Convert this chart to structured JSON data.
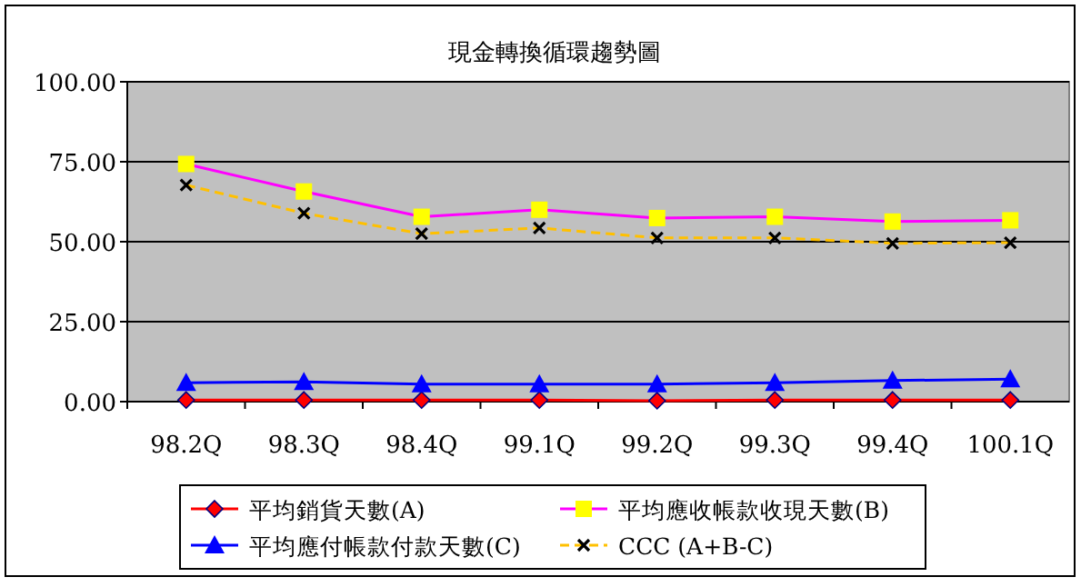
{
  "chart_data": {
    "type": "line",
    "title": "現金轉換循環趨勢圖",
    "categories": [
      "98.2Q",
      "98.3Q",
      "98.4Q",
      "99.1Q",
      "99.2Q",
      "99.3Q",
      "99.4Q",
      "100.1Q"
    ],
    "series": [
      {
        "name": "平均銷貨天數(A)",
        "color": "#ff0000",
        "marker": "diamond",
        "line_style": "solid",
        "values": [
          0.5,
          0.5,
          0.5,
          0.5,
          0.3,
          0.5,
          0.5,
          0.5
        ]
      },
      {
        "name": "平均應收帳款收現天數(B)",
        "color": "#ff00ff",
        "marker": "square",
        "line_style": "solid",
        "values": [
          74.3,
          65.7,
          57.8,
          60.0,
          57.4,
          57.8,
          56.3,
          56.7
        ]
      },
      {
        "name": "平均應付帳款付款天數(C)",
        "color": "#0000ff",
        "marker": "triangle",
        "line_style": "solid",
        "values": [
          5.9,
          6.2,
          5.5,
          5.5,
          5.5,
          5.9,
          6.6,
          7.0
        ]
      },
      {
        "name": "CCC (A+B-C)",
        "color": "#ffc000",
        "marker": "cross",
        "line_style": "dashed",
        "values": [
          67.7,
          58.9,
          52.5,
          54.3,
          51.2,
          51.2,
          49.5,
          49.7
        ]
      }
    ],
    "ylim": [
      0,
      100
    ],
    "yticks": [
      {
        "value": 0,
        "label": "0.00"
      },
      {
        "value": 25,
        "label": "25.00"
      },
      {
        "value": 50,
        "label": "50.00"
      },
      {
        "value": 75,
        "label": "75.00"
      },
      {
        "value": 100,
        "label": "100.00"
      }
    ],
    "grid": "y",
    "legend": "bottom"
  }
}
